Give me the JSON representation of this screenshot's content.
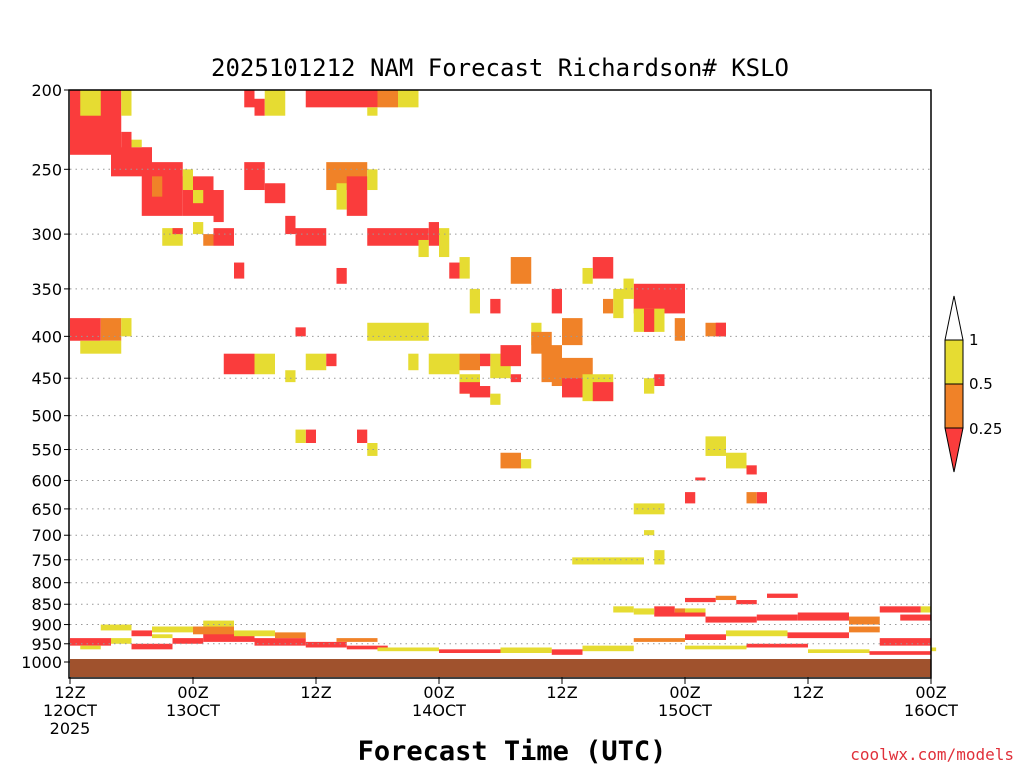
{
  "chart_data": {
    "type": "heatmap",
    "title": "2025101212 NAM Forecast Richardson# KSLO",
    "xlabel": "Forecast Time (UTC)",
    "ylabel": "",
    "credit": "coolwx.com/models",
    "y_axis": {
      "scale": "log-pressure",
      "range_hpa": [
        200,
        1000
      ],
      "ticks": [
        "200",
        "250",
        "300",
        "350",
        "400",
        "450",
        "500",
        "550",
        "600",
        "650",
        "700",
        "750",
        "800",
        "850",
        "900",
        "950",
        "1000"
      ],
      "gridlines": "dotted"
    },
    "x_axis": {
      "range_hours": [
        0,
        84
      ],
      "ticks": [
        {
          "hour": 0,
          "line1": "12Z",
          "line2": "12OCT",
          "line3": "2025"
        },
        {
          "hour": 12,
          "line1": "00Z",
          "line2": "13OCT",
          "line3": ""
        },
        {
          "hour": 24,
          "line1": "12Z",
          "line2": "",
          "line3": ""
        },
        {
          "hour": 36,
          "line1": "00Z",
          "line2": "14OCT",
          "line3": ""
        },
        {
          "hour": 48,
          "line1": "12Z",
          "line2": "",
          "line3": ""
        },
        {
          "hour": 60,
          "line1": "00Z",
          "line2": "15OCT",
          "line3": ""
        },
        {
          "hour": 72,
          "line1": "12Z",
          "line2": "",
          "line3": ""
        },
        {
          "hour": 84,
          "line1": "00Z",
          "line2": "16OCT",
          "line3": ""
        }
      ]
    },
    "colorbar": {
      "labels": [
        "1",
        "0.5",
        "0.25"
      ],
      "bins": [
        {
          "range": "0.5-1",
          "color": "#e6dc32"
        },
        {
          "range": "0.25-0.5",
          "color": "#f08228"
        },
        {
          "range": "<0.25",
          "color": "#fa3c3c"
        }
      ]
    },
    "ground_color": "#a0522d",
    "note": "Cells approximate: [start_hour, end_hour, top_hPa, bottom_hPa, category] where category 1=0.5-1, 2=0.25-0.5, 3=<0.25",
    "cells": [
      [
        0,
        5,
        200,
        240,
        3
      ],
      [
        5,
        6,
        200,
        215,
        1
      ],
      [
        1,
        3,
        200,
        215,
        1
      ],
      [
        5,
        6,
        225,
        245,
        3
      ],
      [
        6,
        7,
        230,
        235,
        1
      ],
      [
        4,
        8,
        235,
        255,
        3
      ],
      [
        7,
        11,
        245,
        285,
        3
      ],
      [
        11,
        14,
        255,
        285,
        3
      ],
      [
        11,
        12,
        250,
        265,
        1
      ],
      [
        12,
        13,
        265,
        275,
        1
      ],
      [
        14,
        15,
        265,
        290,
        3
      ],
      [
        7,
        8,
        235,
        250,
        3
      ],
      [
        8,
        9,
        255,
        270,
        2
      ],
      [
        9,
        11,
        295,
        310,
        1
      ],
      [
        10,
        11,
        295,
        300,
        3
      ],
      [
        14,
        16,
        295,
        310,
        3
      ],
      [
        13,
        14,
        300,
        310,
        2
      ],
      [
        12,
        13,
        290,
        300,
        1
      ],
      [
        16,
        17,
        325,
        340,
        3
      ],
      [
        18,
        19,
        205,
        215,
        3
      ],
      [
        19,
        20,
        200,
        215,
        1
      ],
      [
        17,
        18,
        200,
        210,
        3
      ],
      [
        20,
        21,
        200,
        215,
        1
      ],
      [
        17,
        19,
        245,
        265,
        3
      ],
      [
        19,
        21,
        260,
        275,
        3
      ],
      [
        22,
        25,
        295,
        310,
        3
      ],
      [
        21,
        22,
        285,
        300,
        3
      ],
      [
        23,
        30,
        200,
        210,
        3
      ],
      [
        30,
        32,
        200,
        210,
        2
      ],
      [
        32,
        34,
        200,
        210,
        1
      ],
      [
        29,
        30,
        210,
        215,
        1
      ],
      [
        25,
        29,
        245,
        265,
        2
      ],
      [
        26,
        27,
        260,
        280,
        1
      ],
      [
        27,
        29,
        255,
        285,
        3
      ],
      [
        29,
        30,
        250,
        265,
        1
      ],
      [
        29,
        35,
        295,
        310,
        3
      ],
      [
        35,
        36,
        290,
        310,
        3
      ],
      [
        36,
        37,
        295,
        320,
        1
      ],
      [
        34,
        35,
        305,
        320,
        1
      ],
      [
        26,
        27,
        330,
        345,
        3
      ],
      [
        37,
        38,
        325,
        340,
        3
      ],
      [
        38,
        39,
        320,
        340,
        1
      ],
      [
        39,
        40,
        350,
        375,
        1
      ],
      [
        43,
        45,
        320,
        345,
        2
      ],
      [
        41,
        42,
        360,
        375,
        3
      ],
      [
        47,
        48,
        350,
        375,
        3
      ],
      [
        51,
        53,
        320,
        340,
        3
      ],
      [
        50,
        51,
        330,
        345,
        1
      ],
      [
        48,
        50,
        380,
        410,
        2
      ],
      [
        45,
        46,
        385,
        410,
        1
      ],
      [
        46,
        47,
        410,
        435,
        1
      ],
      [
        29,
        32,
        385,
        405,
        1
      ],
      [
        32,
        35,
        385,
        405,
        1
      ],
      [
        33,
        34,
        420,
        440,
        1
      ],
      [
        22,
        23,
        390,
        400,
        3
      ],
      [
        23,
        25,
        420,
        440,
        1
      ],
      [
        25,
        26,
        420,
        435,
        3
      ],
      [
        15,
        18,
        420,
        445,
        3
      ],
      [
        18,
        20,
        420,
        445,
        1
      ],
      [
        21,
        22,
        440,
        455,
        1
      ],
      [
        35,
        38,
        420,
        445,
        1
      ],
      [
        38,
        40,
        420,
        440,
        2
      ],
      [
        38,
        40,
        445,
        470,
        1
      ],
      [
        38,
        40,
        455,
        470,
        3
      ],
      [
        41,
        43,
        420,
        450,
        1
      ],
      [
        40,
        41,
        420,
        435,
        3
      ],
      [
        42,
        44,
        410,
        435,
        3
      ],
      [
        45,
        47,
        395,
        420,
        2
      ],
      [
        46,
        48,
        410,
        455,
        2
      ],
      [
        47,
        51,
        425,
        460,
        2
      ],
      [
        48,
        50,
        450,
        475,
        3
      ],
      [
        50,
        53,
        445,
        480,
        1
      ],
      [
        51,
        53,
        455,
        480,
        3
      ],
      [
        55,
        60,
        345,
        375,
        3
      ],
      [
        54,
        55,
        340,
        360,
        1
      ],
      [
        52,
        53,
        360,
        375,
        2
      ],
      [
        53,
        54,
        350,
        380,
        1
      ],
      [
        55,
        58,
        370,
        395,
        1
      ],
      [
        56,
        57,
        370,
        395,
        3
      ],
      [
        59,
        60,
        380,
        405,
        2
      ],
      [
        62,
        64,
        385,
        400,
        2
      ],
      [
        63,
        64,
        385,
        400,
        3
      ],
      [
        0,
        3,
        380,
        405,
        3
      ],
      [
        3,
        5,
        380,
        405,
        2
      ],
      [
        5,
        6,
        380,
        400,
        1
      ],
      [
        1,
        5,
        405,
        420,
        1
      ],
      [
        43,
        44,
        445,
        455,
        3
      ],
      [
        39,
        41,
        460,
        475,
        3
      ],
      [
        41,
        42,
        470,
        485,
        1
      ],
      [
        57,
        58,
        445,
        460,
        3
      ],
      [
        56,
        57,
        450,
        470,
        1
      ],
      [
        23,
        24,
        520,
        540,
        3
      ],
      [
        22,
        23,
        520,
        540,
        1
      ],
      [
        28,
        29,
        520,
        540,
        3
      ],
      [
        29,
        30,
        540,
        560,
        1
      ],
      [
        42,
        44,
        555,
        580,
        2
      ],
      [
        44,
        45,
        565,
        580,
        1
      ],
      [
        62,
        64,
        530,
        560,
        1
      ],
      [
        64,
        66,
        555,
        580,
        1
      ],
      [
        66,
        67,
        575,
        590,
        3
      ],
      [
        61,
        62,
        595,
        600,
        3
      ],
      [
        60,
        61,
        620,
        640,
        3
      ],
      [
        55,
        58,
        640,
        660,
        1
      ],
      [
        56,
        57,
        690,
        700,
        1
      ],
      [
        49,
        56,
        745,
        760,
        1
      ],
      [
        57,
        58,
        730,
        760,
        1
      ],
      [
        66,
        67,
        620,
        640,
        2
      ],
      [
        67,
        68,
        620,
        640,
        3
      ],
      [
        57,
        59,
        855,
        870,
        3
      ],
      [
        59,
        60,
        860,
        870,
        2
      ],
      [
        55,
        57,
        860,
        875,
        1
      ],
      [
        60,
        62,
        860,
        875,
        1
      ],
      [
        53,
        55,
        855,
        870,
        1
      ],
      [
        57,
        62,
        870,
        880,
        3
      ],
      [
        62,
        67,
        880,
        895,
        3
      ],
      [
        67,
        71,
        875,
        890,
        3
      ],
      [
        71,
        76,
        870,
        890,
        3
      ],
      [
        76,
        79,
        880,
        900,
        2
      ],
      [
        79,
        83,
        855,
        870,
        3
      ],
      [
        83,
        84,
        855,
        870,
        1
      ],
      [
        81,
        84,
        875,
        890,
        3
      ],
      [
        60,
        63,
        835,
        845,
        3
      ],
      [
        63,
        65,
        830,
        840,
        2
      ],
      [
        65,
        67,
        840,
        850,
        3
      ],
      [
        68,
        71,
        825,
        835,
        3
      ],
      [
        0,
        4,
        935,
        955,
        3
      ],
      [
        4,
        6,
        935,
        950,
        1
      ],
      [
        1,
        3,
        955,
        965,
        1
      ],
      [
        6,
        10,
        950,
        965,
        3
      ],
      [
        10,
        13,
        935,
        950,
        3
      ],
      [
        13,
        18,
        920,
        945,
        3
      ],
      [
        18,
        23,
        935,
        955,
        3
      ],
      [
        23,
        27,
        945,
        960,
        3
      ],
      [
        27,
        31,
        955,
        965,
        3
      ],
      [
        12,
        16,
        905,
        925,
        2
      ],
      [
        16,
        20,
        915,
        930,
        1
      ],
      [
        20,
        23,
        920,
        935,
        2
      ],
      [
        8,
        12,
        905,
        920,
        1
      ],
      [
        13,
        16,
        890,
        905,
        1
      ],
      [
        3,
        6,
        900,
        915,
        1
      ],
      [
        6,
        8,
        915,
        930,
        3
      ],
      [
        8,
        10,
        925,
        935,
        1
      ],
      [
        26,
        30,
        935,
        945,
        2
      ],
      [
        30,
        36,
        960,
        970,
        1
      ],
      [
        36,
        42,
        965,
        975,
        3
      ],
      [
        42,
        47,
        960,
        975,
        1
      ],
      [
        47,
        50,
        965,
        980,
        3
      ],
      [
        50,
        55,
        955,
        970,
        1
      ],
      [
        55,
        60,
        935,
        945,
        2
      ],
      [
        60,
        64,
        925,
        940,
        3
      ],
      [
        64,
        70,
        915,
        930,
        1
      ],
      [
        70,
        76,
        920,
        935,
        3
      ],
      [
        76,
        79,
        905,
        920,
        2
      ],
      [
        79,
        84,
        935,
        955,
        3
      ],
      [
        60,
        66,
        955,
        965,
        1
      ],
      [
        66,
        72,
        950,
        960,
        3
      ],
      [
        72,
        78,
        965,
        975,
        1
      ],
      [
        78,
        84,
        970,
        980,
        3
      ],
      [
        84,
        84.5,
        960,
        970,
        1
      ]
    ]
  }
}
